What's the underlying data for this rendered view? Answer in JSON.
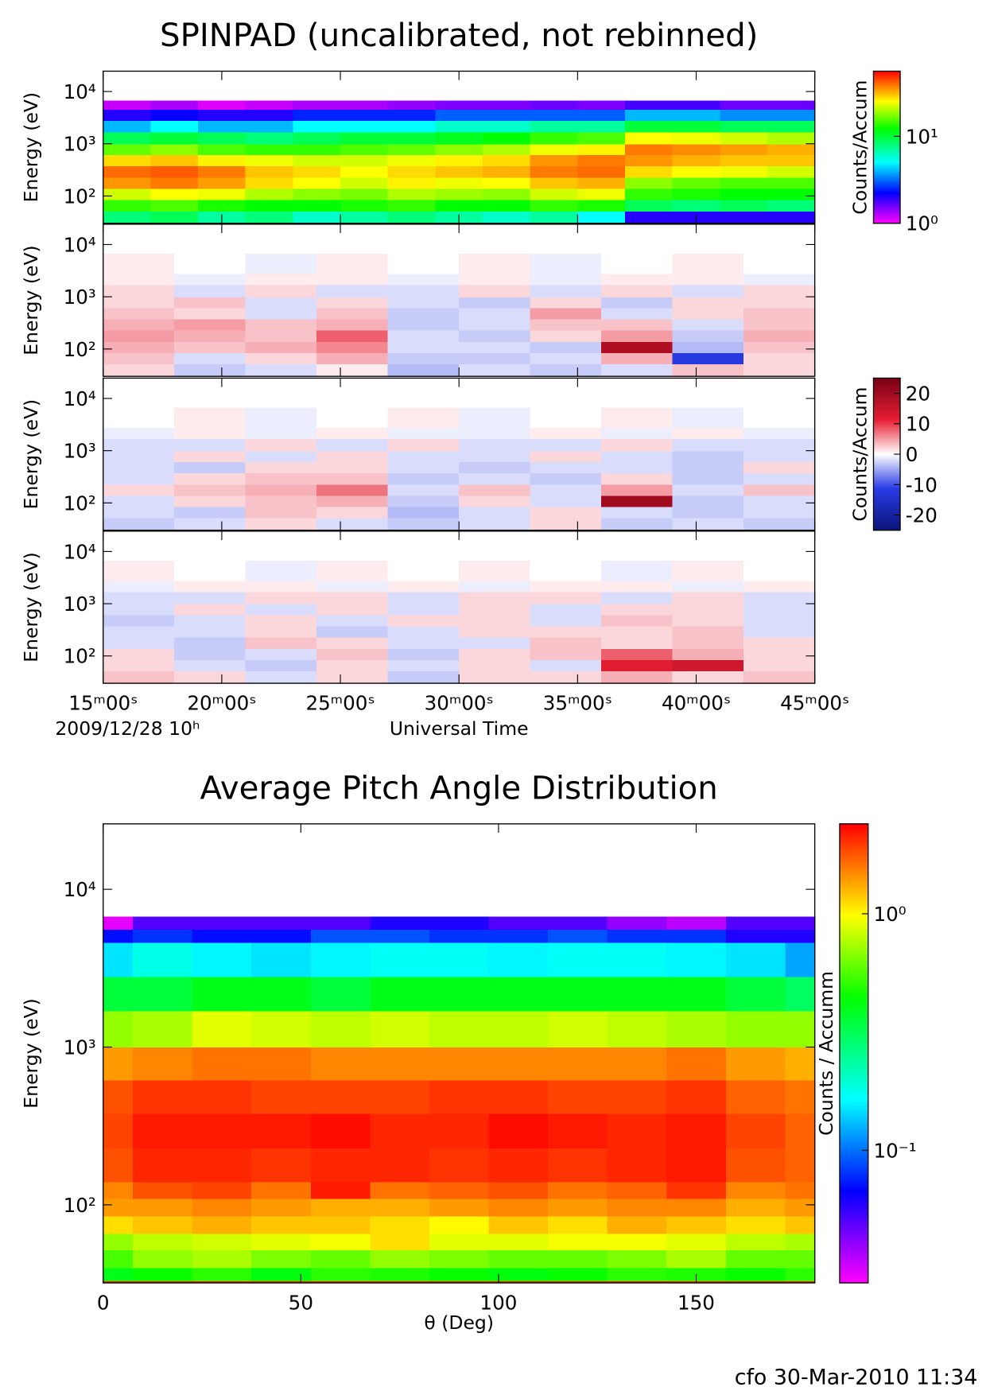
{
  "chart_data": [
    {
      "type": "heatmap",
      "title": "SPINPAD (uncalibrated, not rebinned)",
      "ylabel": "Energy (eV)",
      "xlim": [
        15,
        45
      ],
      "ylim": [
        30,
        24500
      ],
      "ylog": true,
      "yticks": [
        {
          "value": 100,
          "label": "10²"
        },
        {
          "value": 1000,
          "label": "10³"
        },
        {
          "value": 10000,
          "label": "10⁴"
        }
      ],
      "x_edges": [
        15,
        17,
        19,
        21,
        23,
        25,
        27,
        29,
        31,
        33,
        35,
        37,
        39,
        41,
        43,
        45
      ],
      "y_edges": [
        30,
        52,
        85,
        140,
        230,
        380,
        620,
        1000,
        1700,
        2800,
        4600,
        6700
      ],
      "colormap": "rainbow",
      "zlog": true,
      "zlim": [
        1,
        56
      ],
      "zlabel": "Counts/Accum",
      "zticks": [
        {
          "value": 1,
          "label": "10⁰"
        },
        {
          "value": 10,
          "label": "10¹"
        }
      ],
      "values": [
        [
          8,
          9,
          7,
          8,
          6,
          7,
          8,
          7,
          6,
          7,
          5,
          2,
          2,
          2,
          2
        ],
        [
          14,
          15,
          13,
          12,
          12,
          13,
          14,
          12,
          12,
          14,
          13,
          9,
          8,
          9,
          8
        ],
        [
          22,
          25,
          24,
          20,
          18,
          17,
          20,
          19,
          18,
          22,
          24,
          14,
          13,
          12,
          12
        ],
        [
          35,
          38,
          34,
          28,
          25,
          22,
          26,
          24,
          25,
          30,
          32,
          18,
          16,
          15,
          15
        ],
        [
          40,
          42,
          38,
          30,
          28,
          25,
          28,
          30,
          32,
          38,
          40,
          28,
          25,
          24,
          22
        ],
        [
          28,
          30,
          26,
          24,
          22,
          22,
          24,
          26,
          28,
          35,
          38,
          35,
          32,
          30,
          30
        ],
        [
          16,
          18,
          15,
          14,
          14,
          15,
          16,
          18,
          20,
          24,
          26,
          38,
          36,
          34,
          32
        ],
        [
          9,
          10,
          9,
          8,
          9,
          10,
          10,
          11,
          12,
          14,
          15,
          25,
          24,
          22,
          20
        ],
        [
          4,
          5,
          4,
          4,
          5,
          5,
          5,
          6,
          6,
          7,
          7,
          10,
          10,
          9,
          9
        ],
        [
          2,
          2.2,
          2,
          2,
          2.5,
          2.5,
          2.5,
          3,
          3,
          3,
          3,
          4,
          4,
          3.5,
          3.5
        ],
        [
          1.2,
          1.3,
          1.1,
          1.2,
          1.3,
          1.3,
          1.4,
          1.5,
          1.5,
          1.6,
          1.5,
          1.8,
          1.8,
          1.6,
          1.6
        ]
      ]
    },
    {
      "type": "heatmap",
      "ylabel": "Energy (eV)",
      "xlim": [
        15,
        45
      ],
      "ylim": [
        30,
        24500
      ],
      "ylog": true,
      "yticks": [
        {
          "value": 100,
          "label": "10²"
        },
        {
          "value": 1000,
          "label": "10³"
        },
        {
          "value": 10000,
          "label": "10⁴"
        }
      ],
      "x_edges": [
        15,
        18,
        21,
        24,
        27,
        30,
        33,
        36,
        39,
        42,
        45
      ],
      "y_edges": [
        30,
        52,
        85,
        140,
        230,
        380,
        620,
        1000,
        1700,
        2800,
        6700
      ],
      "colormap": "diverging",
      "zlim": [
        -25,
        25
      ],
      "values": [
        [
          2,
          -3,
          -2,
          1,
          -4,
          -2,
          -3,
          -2,
          3,
          2
        ],
        [
          3,
          -2,
          2,
          4,
          -3,
          -3,
          -2,
          4,
          -12,
          2
        ],
        [
          4,
          3,
          4,
          6,
          -2,
          -2,
          -3,
          18,
          -4,
          3
        ],
        [
          5,
          4,
          3,
          8,
          -2,
          -3,
          2,
          5,
          -3,
          4
        ],
        [
          4,
          5,
          3,
          4,
          -3,
          -2,
          3,
          3,
          -2,
          3
        ],
        [
          3,
          2,
          -2,
          3,
          -3,
          -2,
          5,
          -2,
          2,
          3
        ],
        [
          2,
          3,
          -2,
          2,
          -2,
          -3,
          2,
          -3,
          2,
          2
        ],
        [
          2,
          -2,
          2,
          -2,
          -2,
          2,
          -2,
          2,
          -2,
          2
        ],
        [
          1,
          -1,
          1,
          1,
          -1,
          1,
          -1,
          1,
          1,
          -1
        ],
        [
          1,
          0,
          -1,
          1,
          0,
          1,
          -1,
          0,
          1,
          0
        ]
      ]
    },
    {
      "type": "heatmap",
      "ylabel": "Energy (eV)",
      "xlim": [
        15,
        45
      ],
      "ylim": [
        30,
        24500
      ],
      "ylog": true,
      "yticks": [
        {
          "value": 100,
          "label": "10²"
        },
        {
          "value": 1000,
          "label": "10³"
        },
        {
          "value": 10000,
          "label": "10⁴"
        }
      ],
      "x_edges": [
        15,
        18,
        21,
        24,
        27,
        30,
        33,
        36,
        39,
        42,
        45
      ],
      "y_edges": [
        30,
        52,
        85,
        140,
        230,
        380,
        620,
        1000,
        1700,
        2800,
        6700
      ],
      "colormap": "diverging",
      "zlim": [
        -25,
        25
      ],
      "zlabel": "Counts/Accum",
      "zticks": [
        -20,
        -10,
        0,
        10,
        20
      ],
      "values": [
        [
          -3,
          -2,
          2,
          -2,
          -3,
          -2,
          2,
          -3,
          -2,
          -3
        ],
        [
          -2,
          -3,
          3,
          2,
          -4,
          -2,
          2,
          -2,
          -3,
          -2
        ],
        [
          -2,
          2,
          3,
          4,
          -3,
          2,
          -2,
          20,
          -3,
          -2
        ],
        [
          2,
          3,
          4,
          7,
          -2,
          3,
          -2,
          5,
          -2,
          3
        ],
        [
          -2,
          2,
          3,
          3,
          -3,
          -2,
          -3,
          2,
          -3,
          -2
        ],
        [
          -2,
          -3,
          2,
          2,
          -2,
          -3,
          -2,
          -2,
          -3,
          2
        ],
        [
          -2,
          2,
          -2,
          2,
          -2,
          -2,
          2,
          -2,
          -3,
          -2
        ],
        [
          -2,
          -2,
          2,
          -2,
          2,
          -2,
          -2,
          2,
          -2,
          -2
        ],
        [
          -1,
          1,
          -1,
          1,
          -1,
          -1,
          1,
          -1,
          1,
          -1
        ],
        [
          0,
          1,
          -1,
          0,
          1,
          -1,
          0,
          1,
          -1,
          0
        ]
      ]
    },
    {
      "type": "heatmap",
      "ylabel": "Energy (eV)",
      "xlabel": "Universal Time",
      "date_label": "2009/12/28 10ʰ",
      "xlim": [
        15,
        45
      ],
      "ylim": [
        30,
        24500
      ],
      "ylog": true,
      "xticks": [
        {
          "value": 15,
          "label": "15ᵐ00ˢ"
        },
        {
          "value": 20,
          "label": "20ᵐ00ˢ"
        },
        {
          "value": 25,
          "label": "25ᵐ00ˢ"
        },
        {
          "value": 30,
          "label": "30ᵐ00ˢ"
        },
        {
          "value": 35,
          "label": "35ᵐ00ˢ"
        },
        {
          "value": 40,
          "label": "40ᵐ00ˢ"
        },
        {
          "value": 45,
          "label": "45ᵐ00ˢ"
        }
      ],
      "yticks": [
        {
          "value": 100,
          "label": "10²"
        },
        {
          "value": 1000,
          "label": "10³"
        },
        {
          "value": 10000,
          "label": "10⁴"
        }
      ],
      "x_edges": [
        15,
        18,
        21,
        24,
        27,
        30,
        33,
        36,
        39,
        42,
        45
      ],
      "y_edges": [
        30,
        52,
        85,
        140,
        230,
        380,
        620,
        1000,
        1700,
        2800,
        6700
      ],
      "colormap": "diverging",
      "zlim": [
        -25,
        25
      ],
      "values": [
        [
          3,
          2,
          -2,
          2,
          -3,
          2,
          2,
          4,
          2,
          3
        ],
        [
          2,
          -2,
          -3,
          2,
          -2,
          2,
          -2,
          12,
          14,
          2
        ],
        [
          2,
          -3,
          -2,
          3,
          -3,
          2,
          3,
          8,
          4,
          2
        ],
        [
          -2,
          -3,
          3,
          2,
          -2,
          -2,
          3,
          2,
          3,
          2
        ],
        [
          -2,
          -2,
          2,
          -3,
          -2,
          2,
          2,
          2,
          3,
          -2
        ],
        [
          -3,
          -2,
          2,
          -2,
          2,
          2,
          -2,
          3,
          2,
          -2
        ],
        [
          -2,
          2,
          -2,
          2,
          -2,
          2,
          -2,
          2,
          2,
          -2
        ],
        [
          -2,
          -2,
          2,
          2,
          -2,
          2,
          2,
          -2,
          2,
          -2
        ],
        [
          -1,
          1,
          1,
          -1,
          1,
          -1,
          1,
          1,
          -1,
          1
        ],
        [
          1,
          0,
          -1,
          1,
          0,
          1,
          0,
          -1,
          1,
          0
        ]
      ]
    },
    {
      "type": "heatmap",
      "title": "Average Pitch Angle Distribution",
      "ylabel": "Energy (eV)",
      "xlabel": "θ (Deg)",
      "xlim": [
        0,
        180
      ],
      "xticks": [
        0,
        50,
        100,
        150
      ],
      "ylim": [
        32,
        26000
      ],
      "ylog": true,
      "yticks": [
        {
          "value": 100,
          "label": "10²"
        },
        {
          "value": 1000,
          "label": "10³"
        },
        {
          "value": 10000,
          "label": "10⁴"
        }
      ],
      "x_edges": [
        0,
        7.5,
        22.5,
        37.5,
        52.5,
        67.5,
        82.5,
        97.5,
        112.5,
        127.5,
        142.5,
        157.5,
        172.5,
        180
      ],
      "y_edges": [
        32,
        33,
        40,
        52,
        66,
        85,
        110,
        140,
        230,
        380,
        620,
        1000,
        1700,
        2800,
        4600,
        5600,
        6700
      ],
      "colormap": "rainbow",
      "zlog": true,
      "zlim": [
        0.0275,
        2.4
      ],
      "zlabel": "Counts / Accumm",
      "zticks": [
        {
          "value": 0.1,
          "label": "10⁻¹"
        },
        {
          "value": 1,
          "label": "10⁰"
        }
      ],
      "values": [
        [
          2.2,
          2.2,
          2.2,
          2.2,
          2.2,
          2.2,
          2.2,
          2.2,
          2.2,
          2.2,
          2.2,
          2.2,
          2.2
        ],
        [
          0.4,
          0.45,
          0.5,
          0.42,
          0.5,
          0.48,
          0.45,
          0.42,
          0.45,
          0.5,
          0.48,
          0.45,
          0.5
        ],
        [
          0.55,
          0.7,
          0.75,
          0.65,
          0.6,
          0.7,
          0.65,
          0.6,
          0.6,
          0.65,
          0.75,
          0.6,
          0.6
        ],
        [
          0.7,
          0.8,
          0.85,
          0.9,
          0.95,
          1.1,
          0.9,
          0.9,
          0.95,
          0.95,
          0.9,
          0.8,
          0.75
        ],
        [
          1.1,
          1.2,
          1.3,
          1.2,
          1.2,
          1.1,
          1.0,
          1.2,
          1.1,
          1.3,
          1.2,
          1.1,
          1.2
        ],
        [
          1.4,
          1.4,
          1.5,
          1.4,
          1.3,
          1.3,
          1.4,
          1.5,
          1.4,
          1.5,
          1.5,
          1.3,
          1.4
        ],
        [
          1.5,
          1.8,
          1.9,
          1.6,
          2.2,
          1.6,
          1.7,
          1.8,
          1.6,
          1.7,
          2.0,
          1.5,
          1.6
        ],
        [
          1.8,
          2.1,
          2.1,
          2.0,
          2.1,
          2.1,
          2.0,
          2.1,
          2.0,
          2.1,
          2.2,
          1.8,
          1.7
        ],
        [
          1.9,
          2.2,
          2.2,
          2.2,
          2.3,
          2.1,
          2.1,
          2.3,
          2.2,
          2.1,
          2.2,
          1.9,
          1.7
        ],
        [
          1.8,
          2.0,
          2.0,
          1.9,
          1.9,
          1.9,
          2.0,
          2.0,
          1.9,
          1.9,
          2.0,
          1.7,
          1.6
        ],
        [
          1.4,
          1.5,
          1.6,
          1.6,
          1.5,
          1.5,
          1.5,
          1.5,
          1.5,
          1.5,
          1.6,
          1.4,
          1.3
        ],
        [
          0.7,
          0.75,
          0.9,
          0.85,
          0.8,
          0.85,
          0.8,
          0.8,
          0.85,
          0.8,
          0.75,
          0.7,
          0.7
        ],
        [
          0.35,
          0.35,
          0.4,
          0.4,
          0.35,
          0.4,
          0.4,
          0.4,
          0.4,
          0.4,
          0.4,
          0.35,
          0.3
        ],
        [
          0.15,
          0.18,
          0.16,
          0.15,
          0.16,
          0.17,
          0.17,
          0.16,
          0.17,
          0.17,
          0.16,
          0.15,
          0.12
        ],
        [
          0.07,
          0.08,
          0.07,
          0.07,
          0.09,
          0.09,
          0.08,
          0.08,
          0.09,
          0.08,
          0.08,
          0.06,
          0.06
        ],
        [
          0.03,
          0.05,
          0.05,
          0.05,
          0.05,
          0.06,
          0.06,
          0.05,
          0.05,
          0.04,
          0.035,
          0.05,
          0.05
        ]
      ]
    }
  ],
  "footer": "cfo 30-Mar-2010 11:34"
}
